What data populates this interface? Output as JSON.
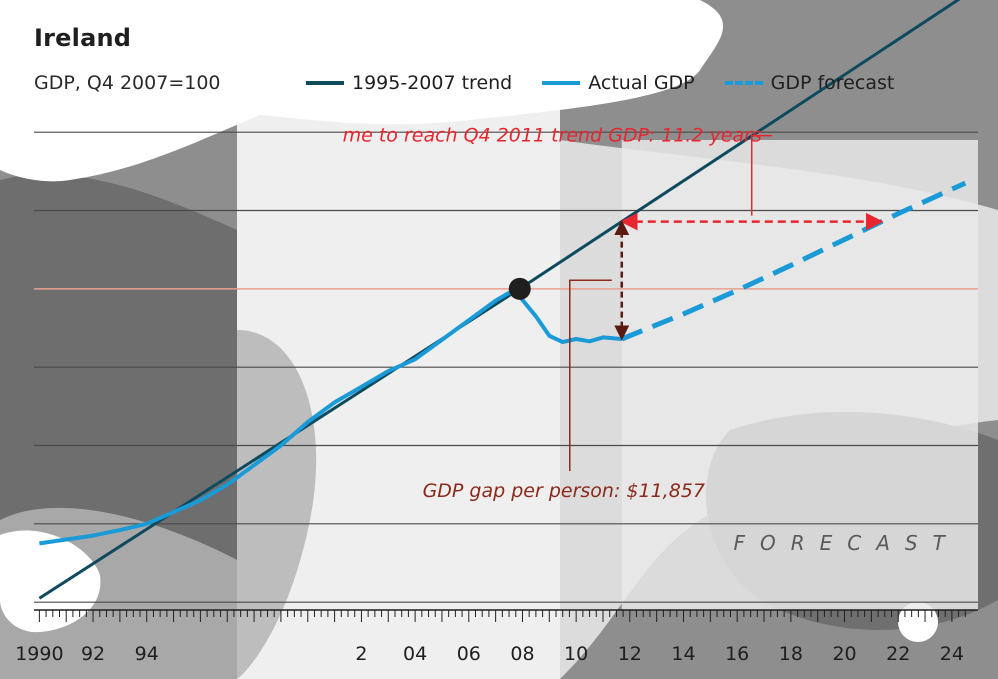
{
  "chart_data": {
    "type": "line",
    "title": "Ireland",
    "subtitle": "GDP, Q4 2007=100",
    "xlim": [
      1989.8,
      2024.6
    ],
    "ylim": [
      59,
      119
    ],
    "x_ticks": [
      1990,
      1992,
      1994,
      1996,
      1998,
      2000,
      2002,
      2004,
      2006,
      2008,
      2010,
      2012,
      2014,
      2016,
      2018,
      2020,
      2022,
      2024
    ],
    "x_tick_labels": [
      "1990",
      "92",
      "94",
      "",
      "",
      "",
      "2",
      "04",
      "06",
      "08",
      "10",
      "12",
      "14",
      "16",
      "18",
      "20",
      "22",
      "24"
    ],
    "gridlines_y": [
      60,
      70,
      80,
      90,
      110,
      120
    ],
    "reference_line_y": 100,
    "forecast_start": 2011.7,
    "forecast_label": "FORECAST",
    "series": [
      {
        "name": "1995-2007 trend",
        "style": "solid",
        "color": "#0e4a5e",
        "x": [
          1990,
          2007.9,
          2024.5
        ],
        "y": [
          60.5,
          100,
          137.5
        ]
      },
      {
        "name": "Actual GDP",
        "style": "solid",
        "color": "#1a9ad6",
        "x": [
          1990,
          1991,
          1992,
          1993,
          1994,
          1995,
          1996,
          1997,
          1998,
          1999,
          2000,
          2001,
          2002,
          2003,
          2004,
          2005,
          2006,
          2007,
          2007.5,
          2007.9,
          2008.5,
          2009,
          2009.5,
          2010,
          2010.5,
          2011,
          2011.7
        ],
        "y": [
          67.5,
          68,
          68.5,
          69.2,
          70,
          71.5,
          73,
          75,
          77.5,
          80,
          83,
          85.5,
          87.5,
          89.5,
          91,
          93.5,
          96,
          98.5,
          99.5,
          99,
          96.5,
          94,
          93.2,
          93.6,
          93.3,
          93.8,
          93.6
        ]
      },
      {
        "name": "GDP forecast",
        "style": "dashed",
        "color": "#1a9ad6",
        "x": [
          2011.7,
          2014,
          2016,
          2018,
          2020,
          2022,
          2024.5
        ],
        "y": [
          93.6,
          96.8,
          99.8,
          103,
          106.3,
          109.6,
          113.5
        ]
      }
    ],
    "annotations": [
      {
        "id": "trend-gap",
        "text": "me to reach Q4 2011 trend GDP: 11.2 years",
        "color": "#e8262f"
      },
      {
        "id": "person-gap",
        "text": "GDP gap per person: $11,857",
        "color": "#8b2a1a"
      }
    ],
    "marker": {
      "x": 2007.9,
      "y": 100
    }
  }
}
